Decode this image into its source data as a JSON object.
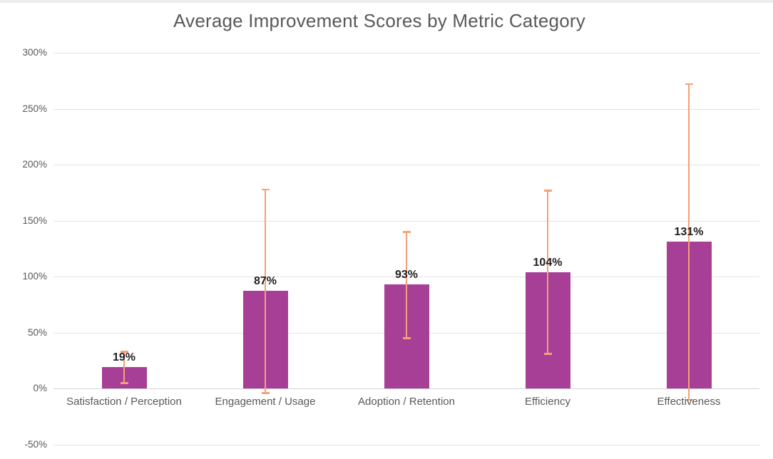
{
  "page": {
    "top_strip_color": "#ededed",
    "background": "#ffffff"
  },
  "chart_data": {
    "type": "bar",
    "title": "Average Improvement Scores by Metric Category",
    "categories": [
      "Satisfaction / Perception",
      "Engagement / Usage",
      "Adoption / Retention",
      "Efficiency",
      "Effectiveness"
    ],
    "values": [
      19,
      87,
      93,
      104,
      131
    ],
    "data_labels": [
      "19%",
      "87%",
      "93%",
      "104%",
      "131%"
    ],
    "error_bars": {
      "low": [
        5,
        -4,
        45,
        31,
        -10
      ],
      "high": [
        33,
        178,
        140,
        177,
        272
      ]
    },
    "y_axis": {
      "min": -50,
      "max": 300,
      "step": 50,
      "tick_labels": [
        "300%",
        "250%",
        "200%",
        "150%",
        "100%",
        "50%",
        "0%",
        "-50%"
      ],
      "format": "percent"
    },
    "xlabel": "",
    "ylabel": "",
    "grid": true,
    "legend": false,
    "colors": {
      "bar": "#a73f97",
      "error_bar": "#f5a078",
      "gridline": "#e4e4e4",
      "zero_line": "#d4d4d4",
      "title_text": "#595959",
      "tick_text": "#595959",
      "category_text": "#595959",
      "data_label_text": "#1f1f1f"
    }
  }
}
